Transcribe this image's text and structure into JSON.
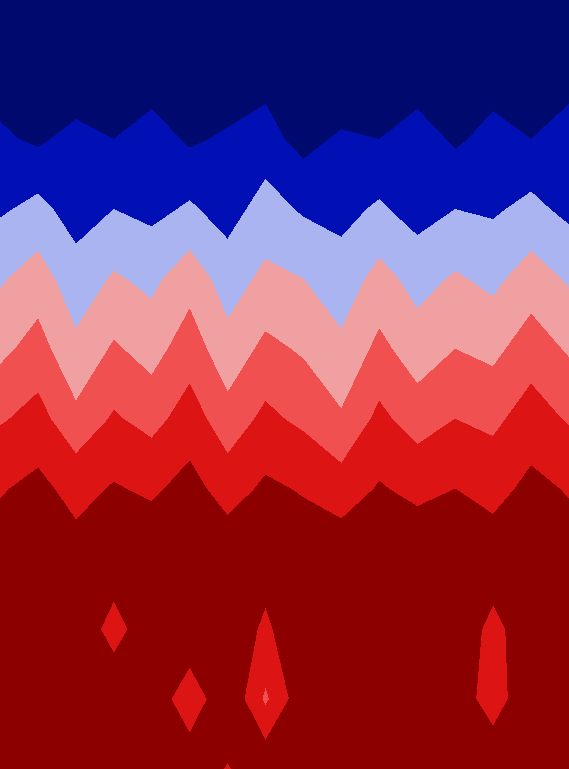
{
  "chart_data": {
    "type": "contour",
    "tick_labels": false,
    "levels": [
      0,
      1,
      1.6,
      2.4,
      3.2,
      4,
      5,
      6
    ],
    "colors": [
      "#000a6e",
      "#0010b4",
      "#aab4f0",
      "#f0a0a0",
      "#f05050",
      "#dc1414",
      "#8c0000"
    ],
    "cells": [
      [
        0.5,
        0.3,
        0.6,
        0.4,
        0.2,
        0.5,
        0.7,
        0.3,
        0.4,
        0.6,
        0.3,
        0.5,
        0.4,
        0.2,
        0.6,
        0.5
      ],
      [
        0.7,
        0.9,
        0.5,
        0.8,
        0.6,
        0.9,
        0.5,
        0.8,
        0.7,
        0.4,
        0.9,
        0.6,
        0.8,
        0.7,
        0.5,
        0.9
      ],
      [
        1.1,
        0.9,
        1.2,
        1.0,
        1.3,
        0.9,
        1.1,
        1.2,
        0.8,
        1.1,
        1.0,
        1.3,
        0.9,
        1.2,
        1.0,
        1.1
      ],
      [
        1.5,
        1.8,
        1.3,
        1.6,
        1.4,
        1.7,
        1.3,
        1.9,
        1.5,
        1.4,
        1.7,
        1.3,
        1.6,
        1.5,
        1.8,
        1.4
      ],
      [
        2.3,
        2.8,
        1.9,
        2.5,
        2.2,
        2.9,
        2.0,
        2.6,
        2.4,
        1.9,
        2.7,
        2.1,
        2.5,
        2.2,
        2.8,
        2.3
      ],
      [
        3.0,
        3.5,
        2.6,
        3.3,
        2.9,
        3.6,
        2.7,
        3.4,
        3.1,
        2.6,
        3.4,
        2.8,
        3.2,
        3.0,
        3.6,
        3.1
      ],
      [
        3.9,
        4.3,
        3.4,
        4.1,
        3.7,
        4.4,
        3.5,
        4.2,
        3.8,
        3.3,
        4.2,
        3.6,
        4.0,
        3.8,
        4.4,
        3.9
      ],
      [
        4.9,
        5.3,
        4.6,
        5.1,
        4.8,
        5.4,
        4.5,
        5.2,
        4.9,
        4.4,
        5.1,
        4.7,
        5.0,
        4.6,
        5.3,
        4.9
      ],
      [
        5.6,
        5.8,
        5.5,
        5.7,
        5.9,
        5.6,
        5.8,
        5.4,
        5.7,
        5.8,
        5.6,
        5.9,
        5.5,
        5.7,
        5.8,
        5.6
      ],
      [
        5.8,
        5.7,
        5.9,
        4.5,
        5.8,
        5.9,
        5.7,
        4.8,
        5.8,
        5.9,
        5.8,
        5.7,
        5.9,
        4.6,
        5.8,
        5.9
      ],
      [
        5.9,
        5.8,
        5.7,
        5.9,
        5.8,
        4.2,
        5.9,
        3.8,
        5.7,
        5.8,
        5.9,
        5.8,
        5.7,
        4.4,
        5.9,
        5.8
      ],
      [
        5.8,
        5.9,
        5.8,
        5.7,
        5.9,
        5.8,
        4.9,
        5.8,
        5.9,
        5.8,
        5.7,
        5.9,
        5.8,
        5.9,
        5.8,
        5.7
      ]
    ]
  }
}
